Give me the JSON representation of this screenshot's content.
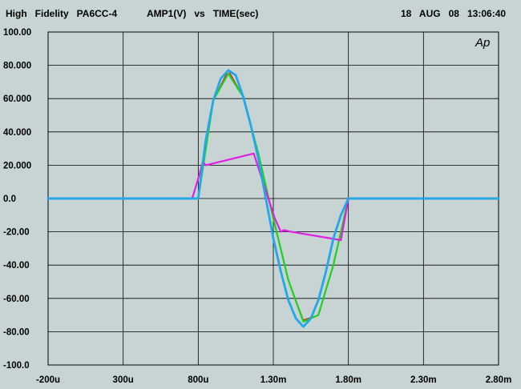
{
  "header": {
    "instrument": "High   Fidelity   PA6CC-4",
    "title": "AMP1(V)   vs   TIME(sec)",
    "date": "18   AUG   08",
    "time": "13:06:40",
    "logo": "Ap"
  },
  "chart_data": {
    "type": "line",
    "title": "AMP1(V)   vs   TIME(sec)",
    "xlabel": "TIME(sec)",
    "ylabel": "AMP1(V)",
    "xlim": [
      -0.0002,
      0.0028
    ],
    "ylim": [
      -100,
      100
    ],
    "x_ticks": [
      -0.0002,
      0.0003,
      0.0008,
      0.0013,
      0.0018,
      0.0023,
      0.0028
    ],
    "x_tick_labels": [
      "-200u",
      "300u",
      "800u",
      "1.30m",
      "1.80m",
      "2.30m",
      "2.80m"
    ],
    "y_ticks": [
      100,
      80,
      60,
      40,
      20,
      0,
      -20,
      -40,
      -60,
      -80,
      -100
    ],
    "y_tick_labels": [
      "100.00",
      "80.000",
      "60.000",
      "40.000",
      "20.000",
      "0.0",
      "-20.00",
      "-40.00",
      "-60.00",
      "-80.00",
      "-100.0"
    ],
    "grid": true,
    "colors": {
      "background": "#c8d4d4",
      "grid": "#000000",
      "frame": "#000000"
    },
    "series": [
      {
        "color": "#e01010",
        "width": 1.2,
        "x": [
          -0.0002,
          0.0008,
          0.0009,
          0.001,
          0.0011,
          0.0012,
          0.0013,
          0.0014,
          0.0015,
          0.0016,
          0.0017,
          0.0018,
          0.0028
        ],
        "y": [
          0,
          0,
          59,
          77,
          61,
          27,
          -12,
          -49,
          -73,
          -70,
          -40,
          0,
          0
        ]
      },
      {
        "color": "#20d020",
        "width": 2.2,
        "x": [
          -0.0002,
          0.0008,
          0.0009,
          0.001,
          0.0011,
          0.0012,
          0.0013,
          0.0014,
          0.0015,
          0.0016,
          0.0017,
          0.0018,
          0.0028
        ],
        "y": [
          0,
          0,
          59,
          75,
          61,
          27,
          -12,
          -49,
          -74,
          -70,
          -40,
          0,
          0
        ]
      },
      {
        "color": "#e020e0",
        "width": 2.2,
        "x": [
          -0.0002,
          0.00076,
          0.00081,
          0.00083,
          0.00085,
          0.00117,
          0.00131,
          0.00135,
          0.00137,
          0.00142,
          0.00175,
          0.0018,
          0.0028
        ],
        "y": [
          0,
          0,
          15,
          22,
          20,
          27,
          -12,
          -20,
          -19,
          -20,
          -25,
          0,
          0
        ]
      },
      {
        "color": "#20a8e8",
        "width": 2.8,
        "x": [
          -0.0002,
          0.0008,
          0.00085,
          0.0009,
          0.00095,
          0.001,
          0.00105,
          0.0011,
          0.00115,
          0.0012,
          0.00125,
          0.0013,
          0.00135,
          0.0014,
          0.00145,
          0.0015,
          0.00155,
          0.0016,
          0.00165,
          0.0017,
          0.00175,
          0.0018,
          0.0028
        ],
        "y": [
          0,
          0,
          35,
          59,
          72,
          77,
          74,
          61,
          44,
          24,
          0,
          -24,
          -44,
          -61,
          -72,
          -77,
          -72,
          -61,
          -44,
          -24,
          -10,
          0,
          0
        ]
      }
    ]
  }
}
